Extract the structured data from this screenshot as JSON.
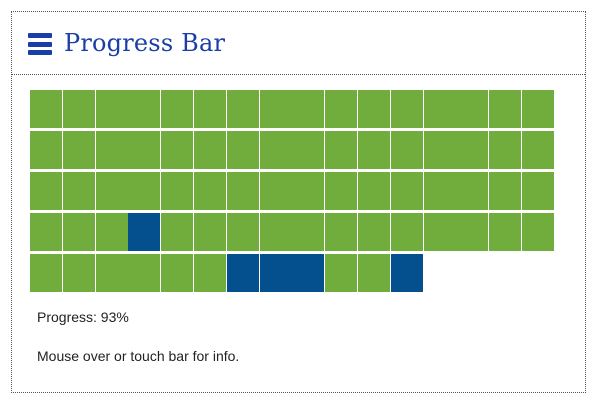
{
  "header": {
    "title": "Progress Bar",
    "menu_icon": "hamburger-menu-icon"
  },
  "progress": {
    "label": "Progress: 93%",
    "value_percent": 93,
    "hint": "Mouse over or touch bar for info."
  },
  "grid": {
    "cols": 16,
    "colors": {
      "complete": "#71ad3c",
      "highlight": "#04508f"
    },
    "rows": [
      [
        "g",
        "g",
        "g",
        "g",
        "g",
        "g",
        "g",
        "g",
        "g",
        "g",
        "g",
        "g",
        "g",
        "g",
        "g",
        "g"
      ],
      [
        "g",
        "g",
        "g",
        "g",
        "g",
        "g",
        "g",
        "g",
        "g",
        "g",
        "g",
        "g",
        "g",
        "g",
        "g",
        "g"
      ],
      [
        "g",
        "g",
        "g",
        "g",
        "g",
        "g",
        "g",
        "g",
        "g",
        "g",
        "g",
        "g",
        "g",
        "g",
        "g",
        "g"
      ],
      [
        "g",
        "g",
        "g",
        "b",
        "g",
        "g",
        "g",
        "g",
        "g",
        "g",
        "g",
        "g",
        "g",
        "g",
        "g",
        "g"
      ],
      [
        "g",
        "g",
        "g",
        "g",
        "g",
        "g",
        "b",
        "b",
        "b",
        "g",
        "g",
        "b"
      ]
    ]
  }
}
